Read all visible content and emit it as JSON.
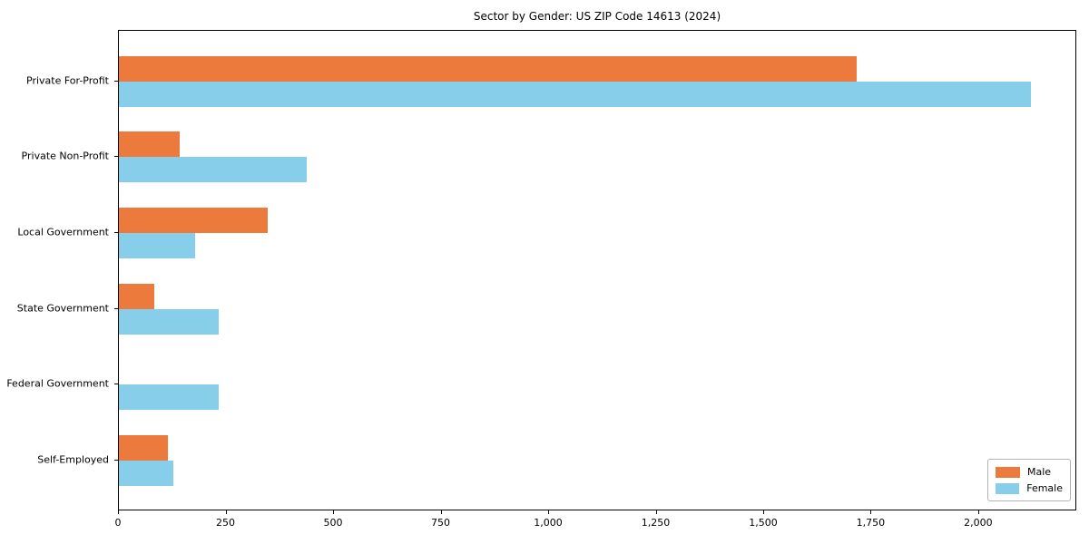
{
  "chart_data": {
    "type": "bar",
    "orientation": "horizontal",
    "title": "Sector by Gender: US ZIP Code 14613 (2024)",
    "categories": [
      "Private For-Profit",
      "Private Non-Profit",
      "Local Government",
      "State Government",
      "Federal Government",
      "Self-Employed"
    ],
    "series": [
      {
        "name": "Male",
        "color": "#ec7a3d",
        "values": [
          1715,
          141,
          346,
          82,
          0,
          114
        ]
      },
      {
        "name": "Female",
        "color": "#87ceeb",
        "values": [
          2120,
          437,
          177,
          232,
          232,
          127
        ]
      }
    ],
    "xlabel": "",
    "ylabel": "",
    "xlim": [
      0,
      2228
    ],
    "xticks": [
      0,
      250,
      500,
      750,
      1000,
      1250,
      1500,
      1750,
      2000
    ],
    "xtick_label_format": "comma",
    "grid": false,
    "legend": {
      "position": "lower right",
      "entries": [
        "Male",
        "Female"
      ]
    },
    "colors": {
      "axis": "#000000",
      "background": "#ffffff",
      "legend_border": "#b3b3b3"
    }
  }
}
